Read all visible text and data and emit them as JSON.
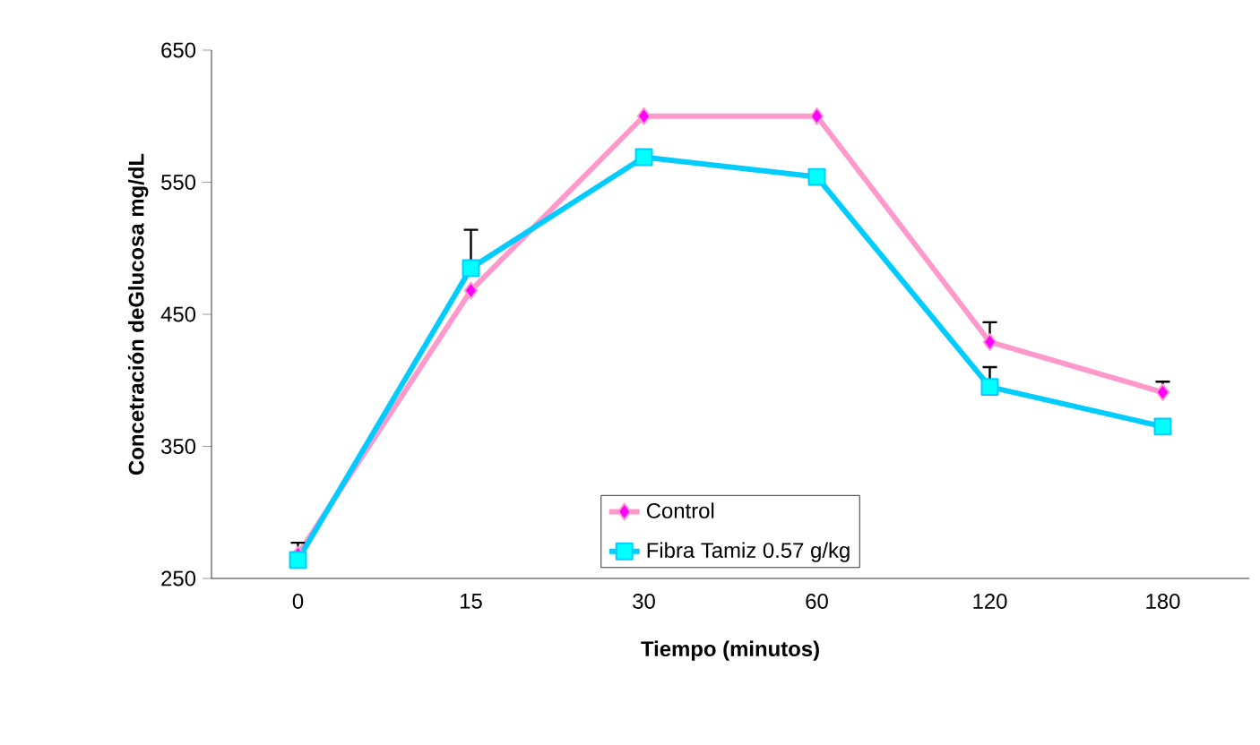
{
  "chart_data": {
    "type": "line",
    "xlabel": "Tiempo (minutos)",
    "ylabel": "Concetración deGlucosa mg/dL",
    "categories": [
      "0",
      "15",
      "30",
      "60",
      "120",
      "180"
    ],
    "series": [
      {
        "name": "Control",
        "color": "#ff99cc",
        "marker": "diamond",
        "values": [
          268,
          468,
          600,
          600,
          429,
          391
        ],
        "errors": [
          null,
          null,
          null,
          null,
          [
            429,
            444
          ],
          [
            391,
            399
          ]
        ]
      },
      {
        "name": "Fibra Tamiz 0.57 g/kg",
        "color": "#00ccff",
        "marker": "square",
        "values": [
          264,
          485,
          569,
          554,
          395,
          365
        ],
        "errors": [
          [
            264,
            277
          ],
          [
            485,
            514
          ],
          null,
          null,
          [
            395,
            410
          ],
          null
        ]
      }
    ],
    "ylim": [
      250,
      650
    ],
    "yticks": [
      250,
      350,
      450,
      550,
      650
    ],
    "grid": false,
    "legend": "bottom"
  }
}
